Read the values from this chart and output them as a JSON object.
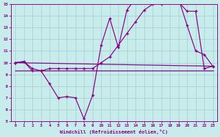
{
  "xlabel": "Windchill (Refroidissement éolien,°C)",
  "xlim": [
    -0.5,
    23.5
  ],
  "ylim": [
    5,
    15
  ],
  "xticks": [
    0,
    1,
    2,
    3,
    4,
    5,
    6,
    7,
    8,
    9,
    10,
    11,
    12,
    13,
    14,
    15,
    16,
    17,
    18,
    19,
    20,
    21,
    22,
    23
  ],
  "yticks": [
    5,
    6,
    7,
    8,
    9,
    10,
    11,
    12,
    13,
    14,
    15
  ],
  "background_color": "#c8ecec",
  "line_color": "#880088",
  "grid_color": "#a0cccc",
  "line1_x": [
    0,
    1,
    2,
    3,
    4,
    5,
    6,
    7,
    8,
    9,
    10,
    11,
    12,
    13,
    14,
    15,
    16,
    17,
    18,
    19,
    20,
    21,
    22,
    23
  ],
  "line1_y": [
    10.0,
    10.1,
    9.3,
    9.3,
    8.2,
    7.0,
    7.1,
    7.0,
    5.2,
    7.2,
    11.5,
    13.8,
    11.3,
    14.5,
    15.5,
    15.5,
    15.5,
    15.0,
    15.5,
    15.5,
    13.2,
    11.0,
    10.7,
    9.7
  ],
  "line2_x": [
    0,
    1,
    2,
    3,
    4,
    5,
    6,
    7,
    8,
    9,
    10,
    11,
    12,
    13,
    14,
    15,
    16,
    17,
    18,
    19,
    20,
    21,
    22,
    23
  ],
  "line2_y": [
    10.0,
    10.1,
    9.5,
    9.3,
    9.5,
    9.5,
    9.5,
    9.5,
    9.5,
    9.5,
    10.0,
    10.5,
    11.5,
    12.5,
    13.5,
    14.5,
    15.0,
    15.5,
    15.5,
    15.2,
    14.4,
    14.4,
    9.5,
    9.7
  ],
  "line3_x": [
    0,
    9,
    23
  ],
  "line3_y": [
    9.3,
    9.3,
    9.3
  ],
  "line4_x": [
    0,
    23
  ],
  "line4_y": [
    10.0,
    9.7
  ]
}
